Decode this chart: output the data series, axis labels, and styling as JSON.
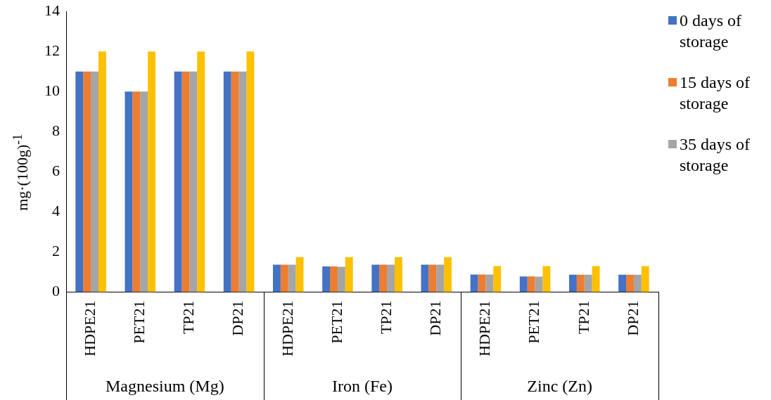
{
  "chart_data": {
    "type": "bar",
    "ylabel": "mg·(100g)$^{-1}$",
    "categories": [
      "HDPE21",
      "PET21",
      "TP21",
      "DP21",
      "HDPE21",
      "PET21",
      "TP21",
      "DP21",
      "HDPE21",
      "PET21",
      "TP21",
      "DP21"
    ],
    "series": [
      {
        "name": "0 days of storage",
        "color": "#4472c4",
        "values": [
          11,
          10,
          11,
          11,
          1.37,
          1.28,
          1.37,
          1.37,
          0.88,
          0.78,
          0.87,
          0.87
        ]
      },
      {
        "name": "15 days of storage",
        "color": "#ed7d31",
        "values": [
          11,
          10,
          11,
          11,
          1.37,
          1.28,
          1.37,
          1.37,
          0.88,
          0.78,
          0.87,
          0.87
        ]
      },
      {
        "name": "35 days of storage",
        "color": "#a5a5a5",
        "values": [
          11,
          10,
          11,
          11,
          1.37,
          1.26,
          1.37,
          1.37,
          0.88,
          0.77,
          0.87,
          0.87
        ]
      },
      {
        "color": "#ffc000",
        "values": [
          12,
          12,
          12,
          12,
          1.75,
          1.75,
          1.75,
          1.75,
          1.3,
          1.3,
          1.3,
          1.3
        ]
      }
    ],
    "annotations": [
      "Magnesium (Mg)",
      "Iron (Fe)",
      "Zinc (Zn)"
    ],
    "ylim": [
      0,
      14
    ],
    "yticks": [
      0,
      2,
      4,
      6,
      8,
      10,
      12,
      14
    ],
    "grid": false,
    "legend": "top right"
  }
}
